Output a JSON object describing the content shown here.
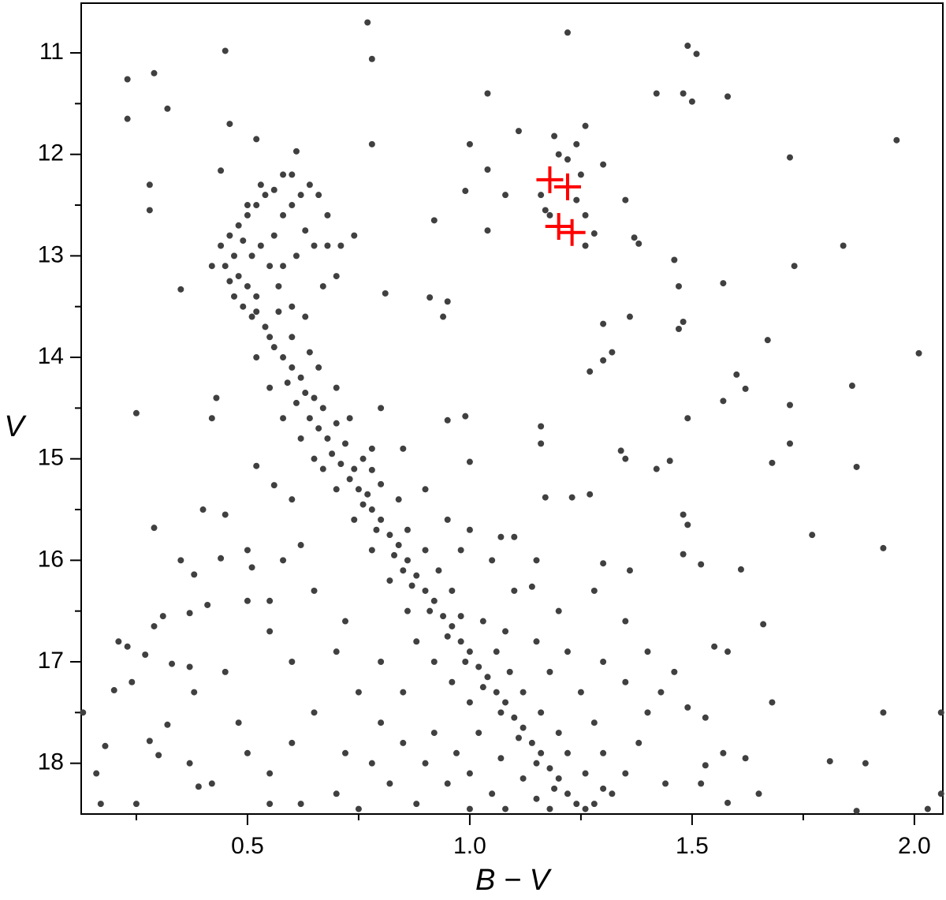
{
  "chart_data": {
    "type": "scatter",
    "x_label": "B − V",
    "y_label": "V",
    "xlim": [
      0.126,
      2.064
    ],
    "ylim": [
      10.51,
      18.5
    ],
    "y_inverted": true,
    "xticks": [
      0.5,
      {
        "value": 1,
        "label": "1.0"
      },
      1.5,
      {
        "value": 2,
        "label": "2.0"
      }
    ],
    "xminorticks": [
      0.25,
      0.75,
      1.25,
      1.75
    ],
    "yticks": [
      11,
      12,
      13,
      14,
      15,
      16,
      17,
      18
    ],
    "yminorticks": [
      11.5,
      12.5,
      13.5,
      14.5,
      15.5,
      16.5,
      17.5
    ],
    "grid": false,
    "series": [
      {
        "color": "#404040",
        "marker": "circle",
        "x": [
          0.77,
          0.45,
          0.78,
          1.22,
          1.49,
          1.51,
          0.23,
          0.29,
          0.23,
          0.32,
          1.04,
          1.42,
          1.48,
          1.5,
          1.58,
          0.46,
          0.52,
          1.11,
          1.26,
          1.0,
          0.78,
          1.96,
          1.72,
          0.28,
          0.28,
          0.44,
          0.61,
          1.04,
          1.08,
          0.99,
          1.3,
          1.35,
          0.92,
          1.04,
          1.37,
          1.38,
          1.73,
          1.84,
          1.46,
          0.35,
          0.81,
          0.91,
          0.95,
          1.47,
          1.57,
          0.94,
          1.3,
          1.36,
          1.48,
          1.47,
          1.67,
          2.01,
          1.32,
          1.3,
          1.27,
          1.6,
          1.62,
          1.86,
          1.57,
          1.72,
          1.49,
          0.25,
          0.43,
          0.42,
          0.95,
          0.99,
          1.16,
          1.16,
          1.72,
          1.34,
          1.35,
          1.45,
          1.42,
          1.68,
          1.87,
          0.78,
          1.0,
          0.52,
          0.56,
          1.27,
          1.23,
          1.17,
          0.4,
          0.45,
          1.48,
          1.49,
          0.29,
          1.1,
          1.07,
          1.77,
          1.93,
          0.35,
          0.44,
          1.48,
          1.3,
          1.52,
          1.61,
          1.36,
          0.38,
          0.51,
          0.41,
          1.14,
          1.66,
          0.31,
          0.29,
          0.37,
          0.21,
          0.23,
          0.33,
          0.37,
          0.27,
          0.38,
          0.2,
          0.24,
          1.68,
          1.93,
          0.13,
          2.06,
          0.18,
          0.28,
          0.3,
          0.32,
          0.37,
          0.16,
          0.17,
          0.39,
          1.81,
          1.89,
          1.62,
          1.53,
          1.52,
          1.58,
          1.65,
          1.87,
          2.03,
          2.06,
          0.25,
          1.57,
          1.58,
          1.55,
          1.49,
          1.46,
          1.43,
          1.53,
          0.44,
          0.46,
          0.48,
          0.5,
          0.52,
          0.54,
          0.56,
          0.53,
          0.5,
          0.47,
          0.45,
          0.48,
          0.5,
          0.52,
          0.49,
          0.51,
          0.54,
          0.55,
          0.56,
          0.58,
          0.6,
          0.62,
          0.64,
          0.66,
          0.68,
          0.63,
          0.65,
          0.61,
          0.58,
          0.57,
          0.6,
          0.63,
          0.67,
          0.7,
          0.68,
          0.71,
          0.74,
          0.55,
          0.53,
          0.51,
          0.49,
          0.46,
          0.42,
          0.52,
          0.57,
          0.47,
          0.6,
          0.58,
          0.56,
          0.58,
          0.6,
          0.62,
          0.59,
          0.63,
          0.65,
          0.61,
          0.67,
          0.64,
          0.66,
          0.7,
          0.68,
          0.72,
          0.69,
          0.71,
          0.74,
          0.73,
          0.75,
          0.77,
          0.76,
          0.78,
          0.8,
          0.79,
          0.82,
          0.84,
          0.83,
          0.86,
          0.85,
          0.88,
          0.87,
          0.9,
          0.92,
          0.91,
          0.94,
          0.96,
          0.95,
          0.98,
          1.0,
          0.99,
          1.02,
          1.04,
          1.03,
          1.06,
          1.08,
          1.07,
          1.1,
          1.12,
          1.11,
          1.14,
          1.16,
          1.15,
          1.18,
          1.2,
          1.19,
          1.22,
          1.24,
          1.26,
          0.66,
          0.7,
          0.73,
          0.78,
          0.76,
          0.8,
          0.84,
          0.86,
          0.9,
          0.93,
          0.96,
          0.98,
          1.03,
          1.06,
          1.09,
          1.12,
          1.16,
          1.2,
          1.22,
          1.26,
          1.3,
          0.67,
          0.7,
          0.74,
          0.78,
          0.82,
          0.86,
          0.88,
          0.92,
          0.96,
          1.0,
          0.58,
          0.62,
          0.65,
          0.55,
          0.52,
          0.6,
          0.64,
          0.8,
          0.85,
          0.9,
          0.95,
          1.0,
          1.05,
          0.88,
          0.82,
          0.78,
          0.92,
          0.97,
          1.02,
          1.07,
          1.12,
          1.08,
          1.15,
          1.28,
          1.32,
          1.3,
          1.35,
          1.28,
          1.25,
          1.3,
          1.35,
          1.4,
          1.22,
          1.18,
          1.15,
          1.08,
          1.2,
          1.28,
          1.35,
          1.4,
          1.38,
          1.44,
          0.72,
          0.7,
          0.65,
          0.6,
          0.55,
          0.5,
          0.62,
          0.75,
          0.7,
          0.6,
          0.55,
          0.5,
          0.65,
          0.72,
          0.8,
          0.85,
          0.45,
          0.48,
          0.42,
          0.55,
          0.75,
          1.0,
          1.18,
          1.05,
          1.1,
          0.98,
          0.95,
          0.9,
          1.0,
          1.15,
          0.85,
          0.8,
          0.6,
          0.62,
          0.58,
          0.5,
          0.55,
          1.16,
          1.18,
          1.2,
          1.22,
          1.25,
          1.24,
          1.26,
          1.28,
          1.26,
          1.17,
          1.19,
          1.24
        ],
        "values": [
          10.7,
          10.98,
          11.06,
          10.8,
          10.93,
          11.01,
          11.26,
          11.2,
          11.65,
          11.55,
          11.4,
          11.4,
          11.4,
          11.48,
          11.43,
          11.7,
          11.85,
          11.77,
          11.72,
          11.9,
          11.9,
          11.86,
          12.03,
          12.3,
          12.55,
          12.16,
          11.97,
          12.15,
          12.4,
          12.36,
          12.1,
          12.45,
          12.65,
          12.75,
          12.82,
          12.88,
          13.1,
          12.9,
          13.04,
          13.33,
          13.37,
          13.41,
          13.45,
          13.3,
          13.27,
          13.6,
          13.67,
          13.6,
          13.65,
          13.72,
          13.83,
          13.96,
          13.95,
          14.03,
          14.14,
          14.17,
          14.31,
          14.28,
          14.43,
          14.47,
          14.6,
          14.55,
          14.4,
          14.6,
          14.62,
          14.58,
          14.68,
          14.85,
          14.85,
          14.92,
          15.0,
          15.02,
          15.1,
          15.04,
          15.08,
          15.11,
          15.03,
          15.07,
          15.26,
          15.35,
          15.38,
          15.38,
          15.5,
          15.55,
          15.55,
          15.65,
          15.68,
          15.77,
          15.77,
          15.75,
          15.88,
          16.0,
          15.98,
          15.94,
          16.03,
          16.04,
          16.09,
          16.1,
          16.14,
          16.07,
          16.44,
          16.26,
          16.63,
          16.55,
          16.65,
          16.52,
          16.8,
          16.85,
          17.02,
          17.05,
          16.93,
          17.3,
          17.28,
          17.2,
          17.4,
          17.5,
          17.5,
          17.5,
          17.83,
          17.78,
          17.92,
          17.62,
          18.0,
          18.1,
          18.4,
          18.23,
          17.98,
          18.0,
          17.95,
          18.02,
          18.2,
          18.39,
          18.3,
          18.47,
          18.45,
          18.3,
          18.4,
          17.9,
          16.9,
          16.85,
          17.45,
          17.1,
          17.3,
          17.55,
          12.9,
          12.8,
          12.7,
          12.6,
          12.5,
          12.4,
          12.35,
          12.3,
          12.5,
          13.0,
          13.1,
          13.2,
          13.3,
          13.4,
          13.5,
          13.6,
          13.7,
          13.8,
          12.8,
          12.6,
          12.5,
          12.4,
          12.3,
          12.4,
          12.6,
          12.75,
          12.9,
          13.0,
          13.1,
          13.3,
          13.5,
          13.6,
          13.3,
          13.2,
          12.9,
          12.9,
          12.8,
          13.1,
          12.9,
          13.0,
          12.85,
          13.25,
          13.1,
          13.55,
          13.55,
          13.4,
          12.2,
          12.2,
          13.9,
          14.0,
          14.1,
          14.2,
          14.25,
          14.35,
          14.4,
          14.45,
          14.5,
          14.6,
          14.7,
          14.65,
          14.8,
          14.85,
          14.95,
          15.05,
          15.1,
          15.2,
          15.3,
          15.35,
          15.45,
          15.5,
          15.6,
          15.7,
          15.75,
          15.85,
          15.95,
          16.0,
          16.1,
          16.15,
          16.25,
          16.3,
          16.4,
          16.5,
          16.55,
          16.65,
          16.75,
          16.8,
          16.9,
          17.0,
          17.05,
          17.15,
          17.25,
          17.3,
          17.4,
          17.5,
          17.55,
          17.65,
          17.75,
          17.8,
          17.9,
          18.0,
          18.05,
          18.15,
          18.25,
          18.3,
          18.4,
          18.45,
          14.1,
          14.3,
          14.6,
          14.9,
          15.0,
          15.25,
          15.4,
          15.7,
          15.9,
          16.1,
          16.3,
          16.55,
          16.6,
          16.9,
          17.1,
          17.3,
          17.5,
          17.7,
          17.9,
          18.1,
          18.25,
          15.1,
          15.3,
          15.6,
          15.9,
          16.2,
          16.5,
          16.8,
          17.0,
          17.2,
          17.4,
          14.6,
          14.8,
          15.0,
          14.3,
          14.0,
          13.8,
          13.95,
          17.6,
          17.8,
          18.0,
          18.2,
          18.1,
          18.3,
          18.4,
          18.2,
          18.0,
          17.7,
          17.9,
          17.7,
          17.95,
          18.15,
          18.45,
          18.35,
          18.4,
          18.3,
          17.9,
          18.1,
          17.6,
          17.3,
          17.0,
          17.2,
          17.5,
          16.9,
          17.1,
          16.8,
          16.7,
          16.5,
          16.3,
          16.6,
          16.9,
          17.8,
          18.2,
          17.9,
          18.3,
          17.5,
          17.8,
          18.1,
          17.9,
          18.4,
          17.3,
          16.9,
          17.0,
          16.7,
          16.4,
          16.3,
          16.6,
          17.0,
          17.3,
          17.1,
          17.6,
          18.2,
          18.4,
          18.45,
          18.45,
          18.45,
          16.0,
          16.3,
          15.9,
          15.6,
          15.3,
          15.7,
          16.0,
          14.9,
          14.5,
          15.4,
          15.85,
          16.0,
          15.9,
          16.4,
          12.4,
          12.6,
          12.0,
          12.05,
          12.2,
          12.45,
          12.6,
          12.78,
          12.9,
          12.55,
          11.82,
          11.9
        ]
      },
      {
        "color": "#ff0000",
        "marker": "plus",
        "x": [
          1.18,
          1.22,
          1.2,
          1.23
        ],
        "values": [
          12.25,
          12.32,
          12.71,
          12.77
        ]
      }
    ]
  }
}
